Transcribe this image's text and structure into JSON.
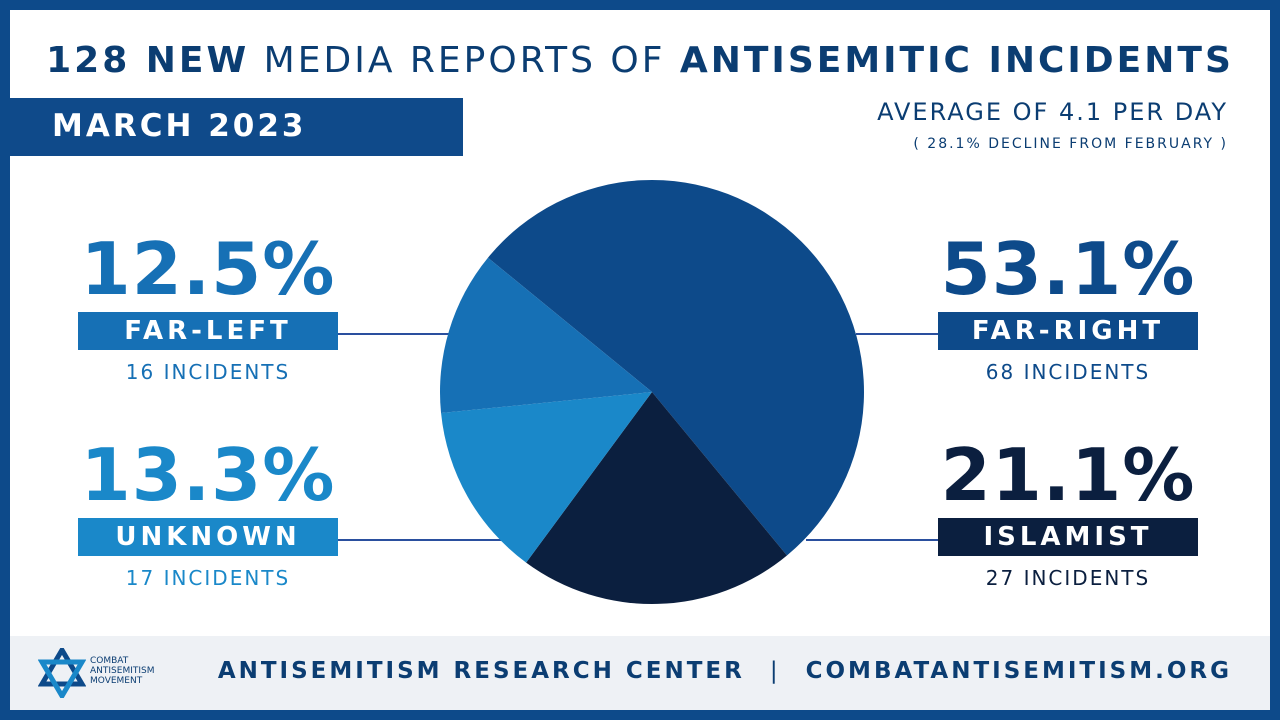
{
  "headline": {
    "part1": "128 NEW",
    "part2": "MEDIA REPORTS OF",
    "part3": "ANTISEMITIC INCIDENTS"
  },
  "month_label": "MARCH 2023",
  "average_text": "AVERAGE OF 4.1 PER DAY",
  "decline_text": "( 28.1% DECLINE FROM FEBRUARY )",
  "stats": {
    "far_left": {
      "pct": "12.5%",
      "label": "FAR-LEFT",
      "count": "16 INCIDENTS"
    },
    "unknown": {
      "pct": "13.3%",
      "label": "UNKNOWN",
      "count": "17 INCIDENTS"
    },
    "far_right": {
      "pct": "53.1%",
      "label": "FAR-RIGHT",
      "count": "68 INCIDENTS"
    },
    "islamist": {
      "pct": "21.1%",
      "label": "ISLAMIST",
      "count": "27 INCIDENTS"
    }
  },
  "chart_data": {
    "type": "pie",
    "categories": [
      "FAR-RIGHT",
      "ISLAMIST",
      "UNKNOWN",
      "FAR-LEFT"
    ],
    "values": [
      53.1,
      21.1,
      13.3,
      12.5
    ],
    "incidents": [
      68,
      27,
      17,
      16
    ],
    "colors": [
      "#0d4a8a",
      "#0b1f3f",
      "#1a88c9",
      "#1670b5"
    ]
  },
  "footer": {
    "org": "ANTISEMITISM RESEARCH CENTER",
    "separator": "|",
    "site": "COMBATANTISEMITISM.ORG",
    "logo_lines": [
      "COMBAT",
      "ANTISEMITISM",
      "MOVEMENT"
    ]
  },
  "colors": {
    "far_left": "#1670b5",
    "unknown": "#1a88c9",
    "far_right": "#0d4a8a",
    "islamist": "#0b1f3f",
    "text_dark": "#0b3d72"
  }
}
